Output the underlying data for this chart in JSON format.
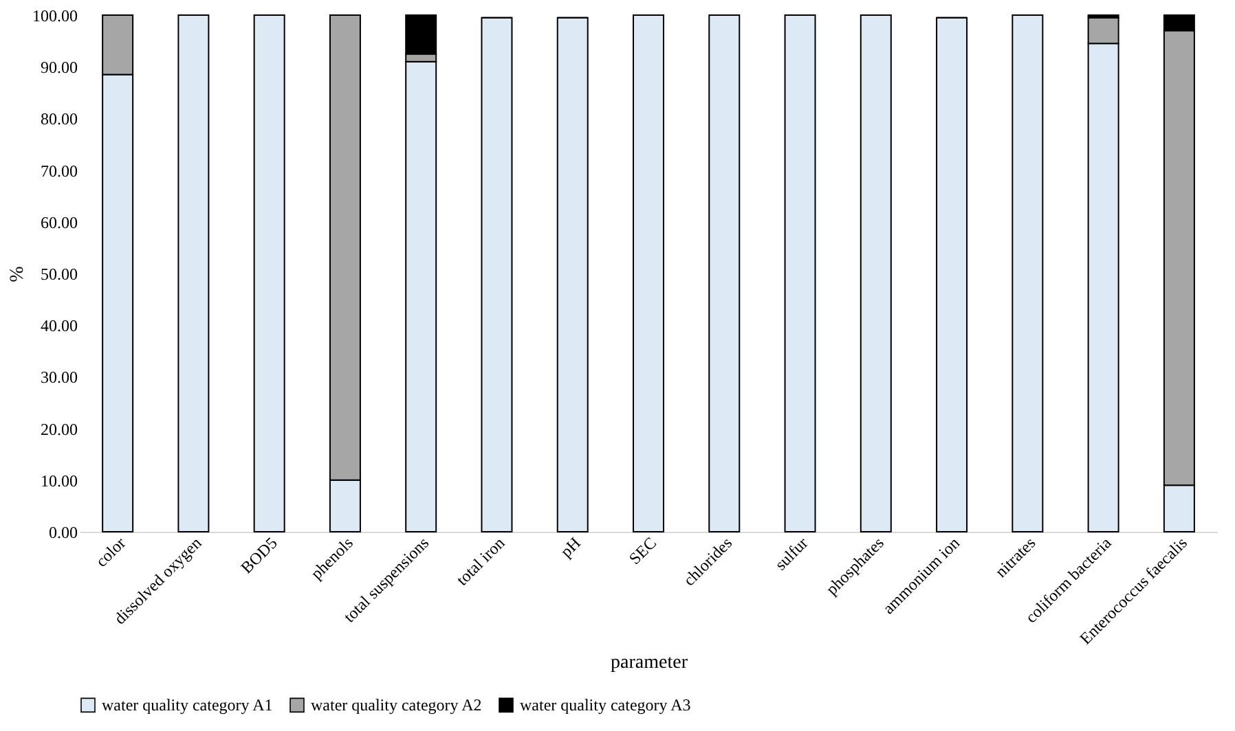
{
  "chart_data": {
    "type": "bar",
    "stacked": true,
    "xlabel": "parameter",
    "ylabel": "%",
    "categories": [
      "color",
      "dissolved oxygen",
      "BOD5",
      "phenols",
      "total suspensions",
      "total iron",
      "pH",
      "SEC",
      "chlorides",
      "sulfur",
      "phosphates",
      "ammonium ion",
      "nitrates",
      "coliform bacteria",
      "Enterococcus faecalis"
    ],
    "series": [
      {
        "name": "water quality category A1",
        "color": "#ddeaf6",
        "values": [
          88.5,
          100,
          100,
          10,
          91,
          99.5,
          99.5,
          100,
          100,
          100,
          100,
          99.5,
          100,
          94.5,
          9
        ]
      },
      {
        "name": "water quality category A2",
        "color": "#a6a6a6",
        "values": [
          11.5,
          0,
          0,
          90,
          1.5,
          null,
          null,
          0,
          0,
          0,
          0,
          null,
          0,
          5,
          88
        ]
      },
      {
        "name": "water quality category A3",
        "color": "#000000",
        "values": [
          0,
          0,
          0,
          0,
          7.5,
          0,
          0,
          0,
          0,
          0,
          0,
          0,
          0,
          0.5,
          3
        ]
      }
    ],
    "ylim": [
      0,
      100
    ],
    "yticks": [
      {
        "value": 0,
        "label": "0.00"
      },
      {
        "value": 10,
        "label": "10.00"
      },
      {
        "value": 20,
        "label": "20.00"
      },
      {
        "value": 30,
        "label": "30.00"
      },
      {
        "value": 40,
        "label": "40.00"
      },
      {
        "value": 50,
        "label": "50.00"
      },
      {
        "value": 60,
        "label": "60.00"
      },
      {
        "value": 70,
        "label": "70.00"
      },
      {
        "value": 80,
        "label": "80.00"
      },
      {
        "value": 90,
        "label": "90.00"
      },
      {
        "value": 100,
        "label": "100.00"
      }
    ],
    "grid": false,
    "legend": "bottom"
  }
}
